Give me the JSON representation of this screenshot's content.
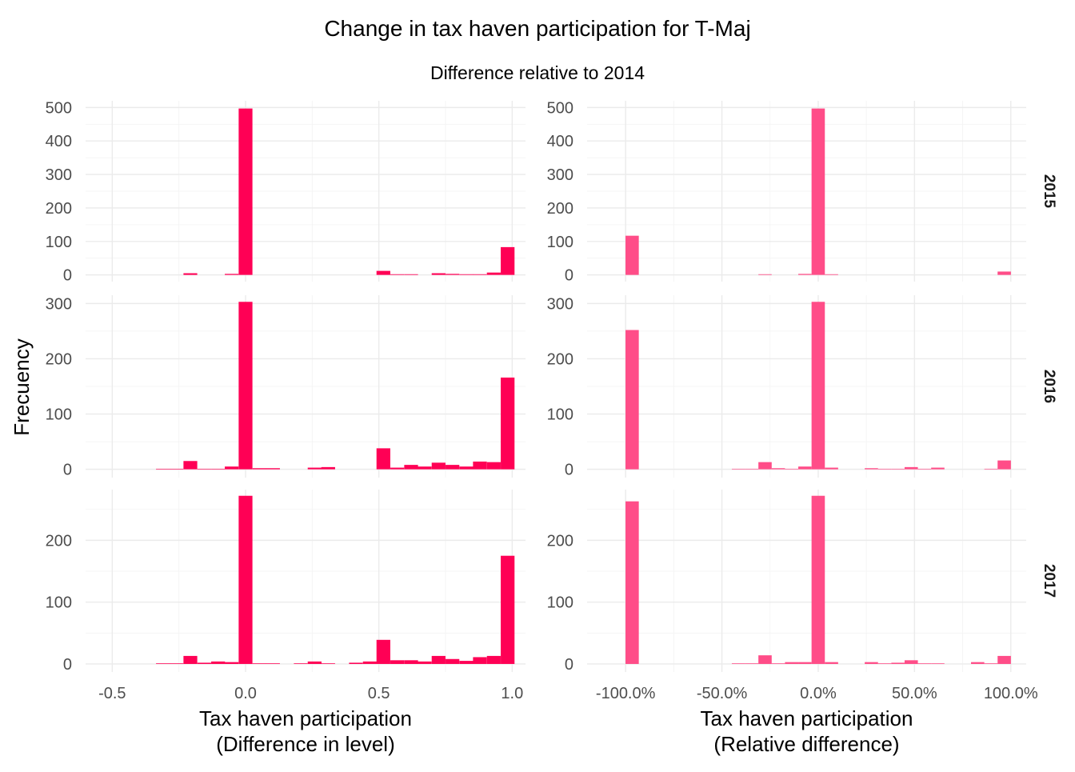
{
  "chart_data": {
    "type": "bar",
    "title": "Change in tax haven participation for T-Maj",
    "subtitle": "Difference relative to 2014",
    "ylabel": "Frecuency",
    "colors": {
      "level": "#FF0055",
      "relative": "#FF4D88"
    },
    "rows": [
      "2015",
      "2016",
      "2017"
    ],
    "columns": [
      {
        "key": "level",
        "xlabel_line1": "Tax haven participation",
        "xlabel_line2": "(Difference in level)",
        "xlim": [
          -0.6,
          1.05
        ],
        "xticks": [
          -0.5,
          0.0,
          0.5,
          1.0
        ],
        "xtick_labels": [
          "-0.5",
          "0.0",
          "0.5",
          "1.0"
        ],
        "bin_width": 0.0517
      },
      {
        "key": "relative",
        "xlabel_line1": "Tax haven participation",
        "xlabel_line2": "(Relative difference)",
        "xlim": [
          -120,
          108
        ],
        "xticks": [
          -100,
          -50,
          0,
          50,
          100
        ],
        "xtick_labels": [
          "-100.0%",
          "-50.0%",
          "0.0%",
          "50.0%",
          "100.0%"
        ],
        "bin_width": 6.9
      }
    ],
    "panels": [
      {
        "row": "2015",
        "col": "level",
        "ylim": [
          -20,
          520
        ],
        "yticks": [
          0,
          100,
          200,
          300,
          400,
          500
        ],
        "bins": [
          {
            "x": -0.207,
            "y": 5
          },
          {
            "x": -0.052,
            "y": 3
          },
          {
            "x": 0.0,
            "y": 497
          },
          {
            "x": 0.517,
            "y": 12
          },
          {
            "x": 0.569,
            "y": 2
          },
          {
            "x": 0.621,
            "y": 2
          },
          {
            "x": 0.724,
            "y": 5
          },
          {
            "x": 0.776,
            "y": 3
          },
          {
            "x": 0.828,
            "y": 2
          },
          {
            "x": 0.879,
            "y": 2
          },
          {
            "x": 0.931,
            "y": 7
          },
          {
            "x": 0.983,
            "y": 83
          }
        ]
      },
      {
        "row": "2015",
        "col": "relative",
        "ylim": [
          -20,
          520
        ],
        "yticks": [
          0,
          100,
          200,
          300,
          400,
          500
        ],
        "bins": [
          {
            "x": -96.6,
            "y": 117
          },
          {
            "x": -27.6,
            "y": 2
          },
          {
            "x": -6.9,
            "y": 3
          },
          {
            "x": 0.0,
            "y": 497
          },
          {
            "x": 6.9,
            "y": 2
          },
          {
            "x": 96.6,
            "y": 10
          }
        ]
      },
      {
        "row": "2016",
        "col": "level",
        "ylim": [
          -15,
          315
        ],
        "yticks": [
          0,
          100,
          200,
          300
        ],
        "bins": [
          {
            "x": -0.31,
            "y": 1
          },
          {
            "x": -0.259,
            "y": 1
          },
          {
            "x": -0.207,
            "y": 15
          },
          {
            "x": -0.155,
            "y": 1
          },
          {
            "x": -0.103,
            "y": 1
          },
          {
            "x": -0.052,
            "y": 5
          },
          {
            "x": 0.0,
            "y": 303
          },
          {
            "x": 0.052,
            "y": 2
          },
          {
            "x": 0.103,
            "y": 2
          },
          {
            "x": 0.259,
            "y": 3
          },
          {
            "x": 0.31,
            "y": 4
          },
          {
            "x": 0.517,
            "y": 38
          },
          {
            "x": 0.569,
            "y": 3
          },
          {
            "x": 0.621,
            "y": 8
          },
          {
            "x": 0.672,
            "y": 5
          },
          {
            "x": 0.724,
            "y": 12
          },
          {
            "x": 0.776,
            "y": 8
          },
          {
            "x": 0.828,
            "y": 5
          },
          {
            "x": 0.879,
            "y": 14
          },
          {
            "x": 0.931,
            "y": 13
          },
          {
            "x": 0.983,
            "y": 166
          }
        ]
      },
      {
        "row": "2016",
        "col": "relative",
        "ylim": [
          -15,
          315
        ],
        "yticks": [
          0,
          100,
          200,
          300
        ],
        "bins": [
          {
            "x": -96.6,
            "y": 252
          },
          {
            "x": -41.4,
            "y": 1
          },
          {
            "x": -34.5,
            "y": 1
          },
          {
            "x": -27.6,
            "y": 13
          },
          {
            "x": -20.7,
            "y": 2
          },
          {
            "x": -13.8,
            "y": 1
          },
          {
            "x": -6.9,
            "y": 5
          },
          {
            "x": 0.0,
            "y": 303
          },
          {
            "x": 6.9,
            "y": 3
          },
          {
            "x": 27.6,
            "y": 2
          },
          {
            "x": 34.5,
            "y": 1
          },
          {
            "x": 41.4,
            "y": 1
          },
          {
            "x": 48.3,
            "y": 4
          },
          {
            "x": 55.2,
            "y": 1
          },
          {
            "x": 62.1,
            "y": 3
          },
          {
            "x": 89.7,
            "y": 1
          },
          {
            "x": 96.6,
            "y": 16
          }
        ]
      },
      {
        "row": "2017",
        "col": "level",
        "ylim": [
          -13,
          282
        ],
        "yticks": [
          0,
          100,
          200
        ],
        "bins": [
          {
            "x": -0.31,
            "y": 1
          },
          {
            "x": -0.259,
            "y": 1
          },
          {
            "x": -0.207,
            "y": 13
          },
          {
            "x": -0.155,
            "y": 2
          },
          {
            "x": -0.103,
            "y": 4
          },
          {
            "x": -0.052,
            "y": 3
          },
          {
            "x": 0.0,
            "y": 272
          },
          {
            "x": 0.052,
            "y": 1
          },
          {
            "x": 0.103,
            "y": 1
          },
          {
            "x": 0.207,
            "y": 1
          },
          {
            "x": 0.259,
            "y": 4
          },
          {
            "x": 0.31,
            "y": 1
          },
          {
            "x": 0.414,
            "y": 2
          },
          {
            "x": 0.466,
            "y": 4
          },
          {
            "x": 0.517,
            "y": 39
          },
          {
            "x": 0.569,
            "y": 6
          },
          {
            "x": 0.621,
            "y": 6
          },
          {
            "x": 0.672,
            "y": 4
          },
          {
            "x": 0.724,
            "y": 13
          },
          {
            "x": 0.776,
            "y": 8
          },
          {
            "x": 0.828,
            "y": 5
          },
          {
            "x": 0.879,
            "y": 11
          },
          {
            "x": 0.931,
            "y": 13
          },
          {
            "x": 0.983,
            "y": 175
          }
        ]
      },
      {
        "row": "2017",
        "col": "relative",
        "ylim": [
          -13,
          282
        ],
        "yticks": [
          0,
          100,
          200
        ],
        "bins": [
          {
            "x": -96.6,
            "y": 263
          },
          {
            "x": -41.4,
            "y": 1
          },
          {
            "x": -34.5,
            "y": 1
          },
          {
            "x": -27.6,
            "y": 14
          },
          {
            "x": -20.7,
            "y": 1
          },
          {
            "x": -13.8,
            "y": 3
          },
          {
            "x": -6.9,
            "y": 3
          },
          {
            "x": 0.0,
            "y": 272
          },
          {
            "x": 6.9,
            "y": 3
          },
          {
            "x": 27.6,
            "y": 3
          },
          {
            "x": 34.5,
            "y": 1
          },
          {
            "x": 41.4,
            "y": 2
          },
          {
            "x": 48.3,
            "y": 6
          },
          {
            "x": 55.2,
            "y": 1
          },
          {
            "x": 62.1,
            "y": 1
          },
          {
            "x": 82.8,
            "y": 3
          },
          {
            "x": 89.7,
            "y": 1
          },
          {
            "x": 96.6,
            "y": 13
          }
        ]
      }
    ]
  }
}
